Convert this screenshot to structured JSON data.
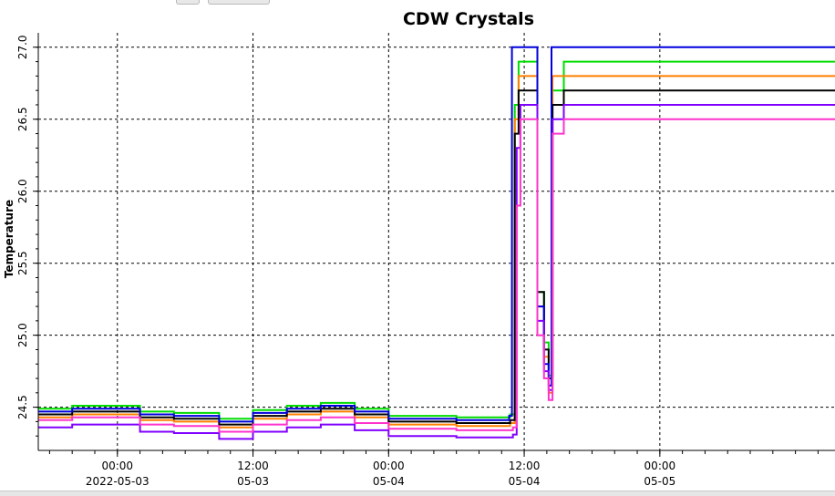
{
  "chart_data": {
    "type": "line",
    "title": "CDW Crystals",
    "xlabel": "",
    "ylabel": "Temperature",
    "ylim": [
      24.2,
      27.1
    ],
    "xlim": [
      "2022-05-02 17:00",
      "2022-05-05 15:30"
    ],
    "grid": true,
    "legend": "none",
    "yticks": [
      {
        "value": 24.5,
        "label": "24.5"
      },
      {
        "value": 25.0,
        "label": "25.0"
      },
      {
        "value": 25.5,
        "label": "25.5"
      },
      {
        "value": 26.0,
        "label": "26.0"
      },
      {
        "value": 26.5,
        "label": "26.5"
      },
      {
        "value": 27.0,
        "label": "27.0"
      }
    ],
    "xticks": [
      {
        "time": "2022-05-03 00:00",
        "line1": "00:00",
        "line2": "2022-05-03"
      },
      {
        "time": "2022-05-03 12:00",
        "line1": "12:00",
        "line2": "05-03"
      },
      {
        "time": "2022-05-04 00:00",
        "line1": "00:00",
        "line2": "05-04"
      },
      {
        "time": "2022-05-04 12:00",
        "line1": "12:00",
        "line2": "05-04"
      },
      {
        "time": "2022-05-05 00:00",
        "line1": "00:00",
        "line2": "05-05"
      }
    ],
    "series": [
      {
        "color": "#00dd00",
        "x": [
          "2022-05-02 17:00",
          "2022-05-02 20:00",
          "2022-05-03 02:00",
          "2022-05-03 05:00",
          "2022-05-03 09:00",
          "2022-05-03 12:00",
          "2022-05-03 15:00",
          "2022-05-03 18:00",
          "2022-05-03 21:00",
          "2022-05-04 00:00",
          "2022-05-04 03:00",
          "2022-05-04 06:00",
          "2022-05-04 10:00",
          "2022-05-04 10:45",
          "2022-05-04 11:10",
          "2022-05-04 11:30",
          "2022-05-04 12:40",
          "2022-05-04 13:10",
          "2022-05-04 13:45",
          "2022-05-04 14:10",
          "2022-05-04 14:30",
          "2022-05-04 15:30",
          "2022-05-05 15:30"
        ],
        "y": [
          24.49,
          24.51,
          24.47,
          24.46,
          24.42,
          24.48,
          24.51,
          24.53,
          24.49,
          24.44,
          24.44,
          24.43,
          24.43,
          24.45,
          26.6,
          26.9,
          26.9,
          25.3,
          24.95,
          24.72,
          26.7,
          26.9,
          26.9
        ]
      },
      {
        "color": "#ff8000",
        "x": [
          "2022-05-02 17:00",
          "2022-05-02 20:00",
          "2022-05-03 02:00",
          "2022-05-03 05:00",
          "2022-05-03 09:00",
          "2022-05-03 12:00",
          "2022-05-03 15:00",
          "2022-05-03 18:00",
          "2022-05-03 21:00",
          "2022-05-04 00:00",
          "2022-05-04 03:00",
          "2022-05-04 06:00",
          "2022-05-04 10:00",
          "2022-05-04 10:45",
          "2022-05-04 11:10",
          "2022-05-04 11:30",
          "2022-05-04 12:40",
          "2022-05-04 13:10",
          "2022-05-04 13:45",
          "2022-05-04 14:10",
          "2022-05-04 14:30",
          "2022-05-04 15:30",
          "2022-05-05 15:30"
        ],
        "y": [
          24.43,
          24.45,
          24.41,
          24.4,
          24.36,
          24.42,
          24.45,
          24.47,
          24.43,
          24.38,
          24.38,
          24.37,
          24.37,
          24.39,
          26.5,
          26.8,
          26.8,
          25.2,
          24.85,
          24.6,
          26.8,
          26.8,
          26.8
        ]
      },
      {
        "color": "#000000",
        "x": [
          "2022-05-02 17:00",
          "2022-05-02 20:00",
          "2022-05-03 02:00",
          "2022-05-03 05:00",
          "2022-05-03 09:00",
          "2022-05-03 12:00",
          "2022-05-03 15:00",
          "2022-05-03 18:00",
          "2022-05-03 21:00",
          "2022-05-04 00:00",
          "2022-05-04 03:00",
          "2022-05-04 06:00",
          "2022-05-04 10:00",
          "2022-05-04 10:45",
          "2022-05-04 11:10",
          "2022-05-04 11:30",
          "2022-05-04 12:40",
          "2022-05-04 13:10",
          "2022-05-04 13:45",
          "2022-05-04 14:10",
          "2022-05-04 14:30",
          "2022-05-04 15:30",
          "2022-05-05 15:30"
        ],
        "y": [
          24.45,
          24.47,
          24.43,
          24.42,
          24.38,
          24.44,
          24.47,
          24.49,
          24.45,
          24.4,
          24.4,
          24.39,
          24.39,
          24.41,
          26.4,
          26.7,
          26.7,
          25.3,
          24.9,
          24.7,
          26.6,
          26.7,
          26.7
        ]
      },
      {
        "color": "#0000dd",
        "x": [
          "2022-05-02 17:00",
          "2022-05-02 20:00",
          "2022-05-03 02:00",
          "2022-05-03 05:00",
          "2022-05-03 09:00",
          "2022-05-03 12:00",
          "2022-05-03 15:00",
          "2022-05-03 18:00",
          "2022-05-03 21:00",
          "2022-05-04 00:00",
          "2022-05-04 03:00",
          "2022-05-04 06:00",
          "2022-05-04 10:00",
          "2022-05-04 10:40",
          "2022-05-04 10:55",
          "2022-05-04 12:30",
          "2022-05-04 12:40",
          "2022-05-04 13:10",
          "2022-05-04 13:45",
          "2022-05-04 14:10",
          "2022-05-04 14:25",
          "2022-05-04 15:30",
          "2022-05-05 15:30"
        ],
        "y": [
          24.47,
          24.49,
          24.45,
          24.44,
          24.4,
          24.46,
          24.49,
          24.51,
          24.47,
          24.42,
          24.42,
          24.41,
          24.41,
          24.44,
          27.0,
          27.0,
          27.0,
          25.2,
          24.8,
          24.65,
          27.0,
          27.0,
          27.0
        ]
      },
      {
        "color": "#8000ff",
        "x": [
          "2022-05-02 17:00",
          "2022-05-02 20:00",
          "2022-05-03 02:00",
          "2022-05-03 05:00",
          "2022-05-03 09:00",
          "2022-05-03 12:00",
          "2022-05-03 15:00",
          "2022-05-03 18:00",
          "2022-05-03 21:00",
          "2022-05-04 00:00",
          "2022-05-04 03:00",
          "2022-05-04 06:00",
          "2022-05-04 10:00",
          "2022-05-04 11:00",
          "2022-05-04 11:20",
          "2022-05-04 11:40",
          "2022-05-04 12:40",
          "2022-05-04 13:10",
          "2022-05-04 13:45",
          "2022-05-04 14:10",
          "2022-05-04 14:30",
          "2022-05-04 15:30",
          "2022-05-05 15:30"
        ],
        "y": [
          24.36,
          24.38,
          24.33,
          24.32,
          24.28,
          24.33,
          24.36,
          24.38,
          24.34,
          24.3,
          24.3,
          24.29,
          24.29,
          24.31,
          26.3,
          26.6,
          26.6,
          25.1,
          24.75,
          24.62,
          26.5,
          26.6,
          26.6
        ]
      },
      {
        "color": "#ff33cc",
        "x": [
          "2022-05-02 17:00",
          "2022-05-02 20:00",
          "2022-05-03 02:00",
          "2022-05-03 05:00",
          "2022-05-03 09:00",
          "2022-05-03 12:00",
          "2022-05-03 15:00",
          "2022-05-03 18:00",
          "2022-05-03 21:00",
          "2022-05-04 00:00",
          "2022-05-04 03:00",
          "2022-05-04 06:00",
          "2022-05-04 10:00",
          "2022-05-04 11:00",
          "2022-05-04 11:20",
          "2022-05-04 11:40",
          "2022-05-04 12:40",
          "2022-05-04 13:10",
          "2022-05-04 13:45",
          "2022-05-04 14:10",
          "2022-05-04 14:30",
          "2022-05-04 15:30",
          "2022-05-05 15:30"
        ],
        "y": [
          24.41,
          24.43,
          24.38,
          24.37,
          24.33,
          24.38,
          24.41,
          24.43,
          24.39,
          24.35,
          24.35,
          24.34,
          24.34,
          24.36,
          25.9,
          26.5,
          26.5,
          25.0,
          24.7,
          24.55,
          26.4,
          26.5,
          26.5
        ]
      }
    ]
  }
}
